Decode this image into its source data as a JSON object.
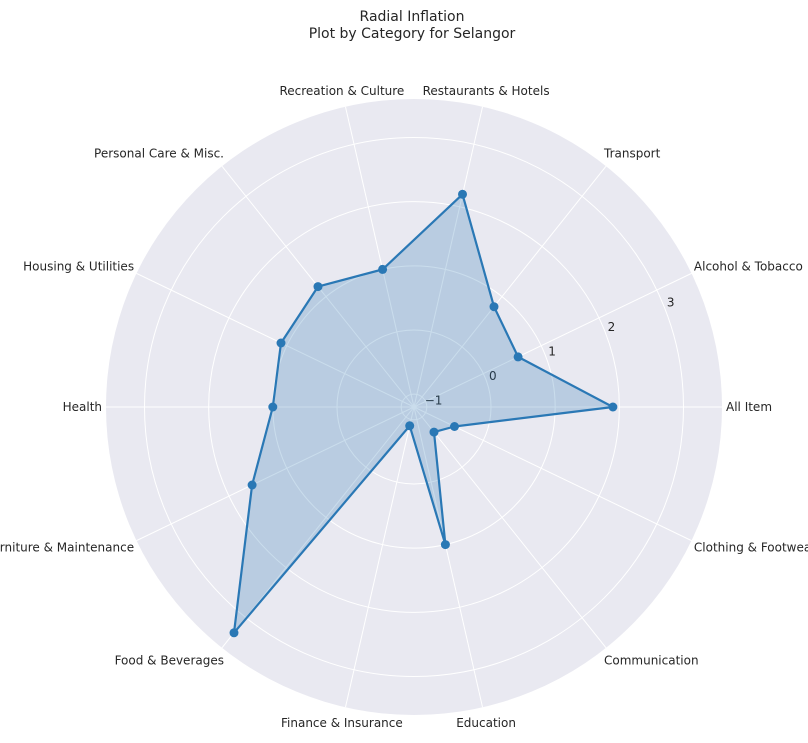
{
  "chart_data": {
    "type": "radar",
    "title_lines": [
      "Radial Inflation",
      "Plot by Category for Selangor"
    ],
    "categories": [
      "All Item",
      "Alcohol & Tobacco",
      "Transport",
      "Restaurants & Hotels",
      "Recreation & Culture",
      "Personal Care & Misc.",
      "Housing & Utilities",
      "Health",
      "Furniture & Maintenance",
      "Food & Beverages",
      "Finance & Insurance",
      "Education",
      "Communication",
      "Clothing & Footwear"
    ],
    "series": [
      {
        "values": [
          1.9,
          0.6,
          0.8,
          2.2,
          1.0,
          1.2,
          1.1,
          1.0,
          1.6,
          3.3,
          -0.9,
          1.0,
          -0.7,
          -0.5
        ]
      }
    ],
    "r_ticks": [
      -1,
      0,
      1,
      2,
      3
    ],
    "r_min": -1.2,
    "r_max": 3.6,
    "grid": true,
    "colors": {
      "line": "#2a78b5",
      "fill": "#2a78b5",
      "background": "#e9e9f1",
      "grid": "#ffffff",
      "text": "#262626"
    }
  }
}
